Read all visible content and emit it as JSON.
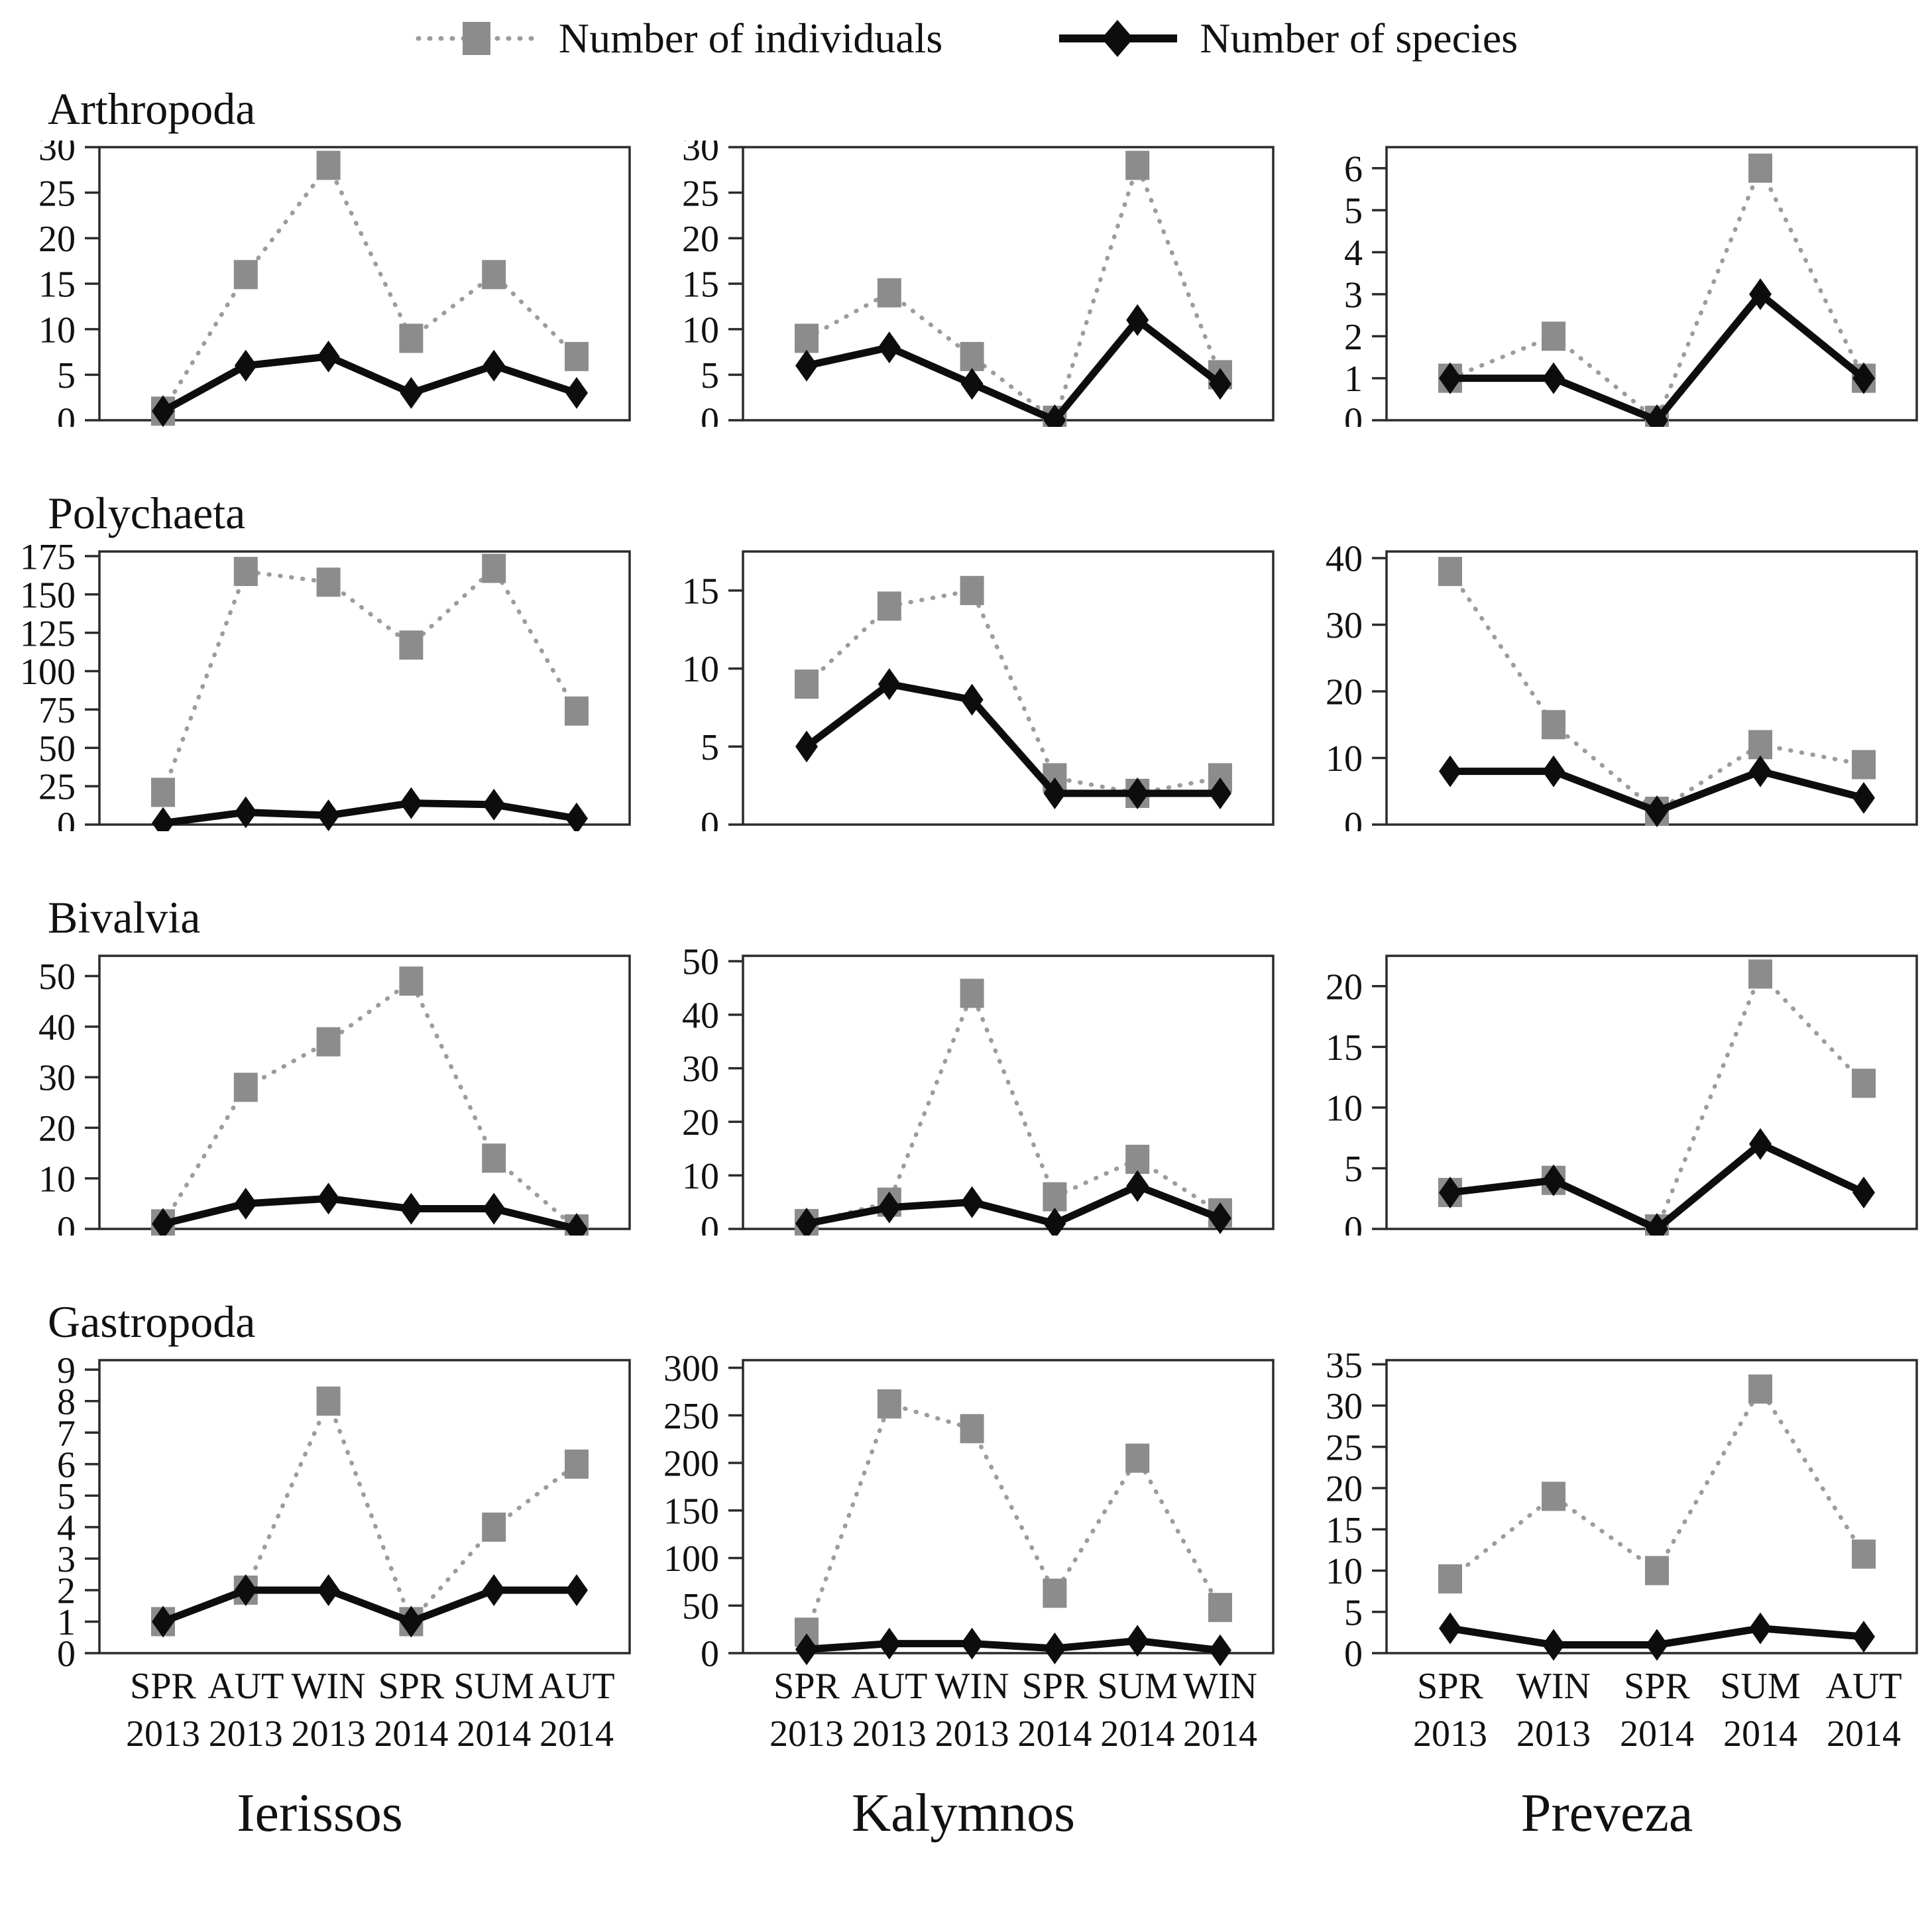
{
  "legend": {
    "individuals": "Number of individuals",
    "species": "Number of species"
  },
  "colors": {
    "frame": "#2b2b2b",
    "individuals_line": "#9c9c9c",
    "individuals_marker": "#8c8c8c",
    "species_line": "#0d0d0d",
    "species_marker": "#0d0d0d",
    "text": "#111111"
  },
  "row_titles": [
    "Arthropoda",
    "Polychaeta",
    "Bivalvia",
    "Gastropoda"
  ],
  "locations": [
    "Ierissos",
    "Kalymnos",
    "Preveza"
  ],
  "chart_data": [
    {
      "type": "line",
      "taxon": "Arthropoda",
      "location": "Ierissos",
      "categories": [
        "SPR 2013",
        "AUT 2013",
        "WIN 2013",
        "SPR 2014",
        "SUM 2014",
        "AUT 2014"
      ],
      "yticks": [
        0,
        5,
        10,
        15,
        20,
        25,
        30
      ],
      "ylim": [
        0,
        30
      ],
      "show_x_labels": false,
      "series": [
        {
          "name": "Number of individuals",
          "values": [
            1,
            16,
            28,
            9,
            16,
            7
          ]
        },
        {
          "name": "Number of species",
          "values": [
            1,
            6,
            7,
            3,
            6,
            3
          ]
        }
      ]
    },
    {
      "type": "line",
      "taxon": "Arthropoda",
      "location": "Kalymnos",
      "categories": [
        "SPR 2013",
        "AUT 2013",
        "WIN 2013",
        "SPR 2014",
        "SUM 2014",
        "WIN 2014"
      ],
      "yticks": [
        0,
        5,
        10,
        15,
        20,
        25,
        30
      ],
      "ylim": [
        0,
        30
      ],
      "show_x_labels": false,
      "series": [
        {
          "name": "Number of individuals",
          "values": [
            9,
            14,
            7,
            0,
            28,
            5
          ]
        },
        {
          "name": "Number of species",
          "values": [
            6,
            8,
            4,
            0,
            11,
            4
          ]
        }
      ]
    },
    {
      "type": "line",
      "taxon": "Arthropoda",
      "location": "Preveza",
      "categories": [
        "SPR 2013",
        "WIN 2013",
        "SPR 2014",
        "SUM 2014",
        "AUT 2014"
      ],
      "yticks": [
        0,
        1,
        2,
        3,
        4,
        5,
        6
      ],
      "ylim": [
        0,
        6.5
      ],
      "show_x_labels": false,
      "series": [
        {
          "name": "Number of individuals",
          "values": [
            1,
            2,
            0,
            6,
            1
          ]
        },
        {
          "name": "Number of species",
          "values": [
            1,
            1,
            0,
            3,
            1
          ]
        }
      ]
    },
    {
      "type": "line",
      "taxon": "Polychaeta",
      "location": "Ierissos",
      "categories": [
        "SPR 2013",
        "AUT 2013",
        "WIN 2013",
        "SPR 2014",
        "SUM 2014",
        "AUT 2014"
      ],
      "yticks": [
        0,
        25,
        50,
        75,
        100,
        125,
        150,
        175
      ],
      "ylim": [
        0,
        178
      ],
      "show_x_labels": false,
      "series": [
        {
          "name": "Number of individuals",
          "values": [
            21,
            165,
            158,
            117,
            167,
            74
          ]
        },
        {
          "name": "Number of species",
          "values": [
            1,
            8,
            6,
            14,
            13,
            4
          ]
        }
      ]
    },
    {
      "type": "line",
      "taxon": "Polychaeta",
      "location": "Kalymnos",
      "categories": [
        "SPR 2013",
        "AUT 2013",
        "WIN 2013",
        "SPR 2014",
        "SUM 2014",
        "WIN 2014"
      ],
      "yticks": [
        0,
        5,
        10,
        15
      ],
      "ylim": [
        0,
        17.5
      ],
      "show_x_labels": false,
      "series": [
        {
          "name": "Number of individuals",
          "values": [
            9,
            14,
            15,
            3,
            2,
            3
          ]
        },
        {
          "name": "Number of species",
          "values": [
            5,
            9,
            8,
            2,
            2,
            2
          ]
        }
      ]
    },
    {
      "type": "line",
      "taxon": "Polychaeta",
      "location": "Preveza",
      "categories": [
        "SPR 2013",
        "WIN 2013",
        "SPR 2014",
        "SUM 2014",
        "AUT 2014"
      ],
      "yticks": [
        0,
        10,
        20,
        30,
        40
      ],
      "ylim": [
        0,
        41
      ],
      "show_x_labels": false,
      "series": [
        {
          "name": "Number of individuals",
          "values": [
            38,
            15,
            2,
            12,
            9
          ]
        },
        {
          "name": "Number of species",
          "values": [
            8,
            8,
            2,
            8,
            4
          ]
        }
      ]
    },
    {
      "type": "line",
      "taxon": "Bivalvia",
      "location": "Ierissos",
      "categories": [
        "SPR 2013",
        "AUT 2013",
        "WIN 2013",
        "SPR 2014",
        "SUM 2014",
        "AUT 2014"
      ],
      "yticks": [
        0,
        10,
        20,
        30,
        40,
        50
      ],
      "ylim": [
        0,
        54
      ],
      "show_x_labels": false,
      "series": [
        {
          "name": "Number of individuals",
          "values": [
            1,
            28,
            37,
            49,
            14,
            0
          ]
        },
        {
          "name": "Number of species",
          "values": [
            1,
            5,
            6,
            4,
            4,
            0
          ]
        }
      ]
    },
    {
      "type": "line",
      "taxon": "Bivalvia",
      "location": "Kalymnos",
      "categories": [
        "SPR 2013",
        "AUT 2013",
        "WIN 2013",
        "SPR 2014",
        "SUM 2014",
        "WIN 2014"
      ],
      "yticks": [
        0,
        10,
        20,
        30,
        40,
        50
      ],
      "ylim": [
        0,
        51
      ],
      "show_x_labels": false,
      "series": [
        {
          "name": "Number of individuals",
          "values": [
            1,
            5,
            44,
            6,
            13,
            3
          ]
        },
        {
          "name": "Number of species",
          "values": [
            1,
            4,
            5,
            1,
            8,
            2
          ]
        }
      ]
    },
    {
      "type": "line",
      "taxon": "Bivalvia",
      "location": "Preveza",
      "categories": [
        "SPR 2013",
        "WIN 2013",
        "SPR 2014",
        "SUM 2014",
        "AUT 2014"
      ],
      "yticks": [
        0,
        5,
        10,
        15,
        20
      ],
      "ylim": [
        0,
        22.5
      ],
      "show_x_labels": false,
      "series": [
        {
          "name": "Number of individuals",
          "values": [
            3,
            4,
            0,
            21,
            12
          ]
        },
        {
          "name": "Number of species",
          "values": [
            3,
            4,
            0,
            7,
            3
          ]
        }
      ]
    },
    {
      "type": "line",
      "taxon": "Gastropoda",
      "location": "Ierissos",
      "categories": [
        "SPR 2013",
        "AUT 2013",
        "WIN 2013",
        "SPR 2014",
        "SUM 2014",
        "AUT 2014"
      ],
      "yticks": [
        0,
        1,
        2,
        3,
        4,
        5,
        6,
        7,
        8,
        9
      ],
      "ylim": [
        0,
        9.3
      ],
      "show_x_labels": true,
      "series": [
        {
          "name": "Number of individuals",
          "values": [
            1,
            2,
            8,
            1,
            4,
            6
          ]
        },
        {
          "name": "Number of species",
          "values": [
            1,
            2,
            2,
            1,
            2,
            2
          ]
        }
      ]
    },
    {
      "type": "line",
      "taxon": "Gastropoda",
      "location": "Kalymnos",
      "categories": [
        "SPR 2013",
        "AUT 2013",
        "WIN 2013",
        "SPR 2014",
        "SUM 2014",
        "WIN 2014"
      ],
      "yticks": [
        0,
        50,
        100,
        150,
        200,
        250,
        300
      ],
      "ylim": [
        0,
        308
      ],
      "show_x_labels": true,
      "series": [
        {
          "name": "Number of individuals",
          "values": [
            22,
            262,
            236,
            63,
            205,
            48
          ]
        },
        {
          "name": "Number of species",
          "values": [
            4,
            10,
            10,
            5,
            13,
            3
          ]
        }
      ]
    },
    {
      "type": "line",
      "taxon": "Gastropoda",
      "location": "Preveza",
      "categories": [
        "SPR 2013",
        "WIN 2013",
        "SPR 2014",
        "SUM 2014",
        "AUT 2014"
      ],
      "yticks": [
        0,
        5,
        10,
        15,
        20,
        25,
        30,
        35
      ],
      "ylim": [
        0,
        35.5
      ],
      "show_x_labels": true,
      "series": [
        {
          "name": "Number of individuals",
          "values": [
            9,
            19,
            10,
            32,
            12
          ]
        },
        {
          "name": "Number of species",
          "values": [
            3,
            1,
            1,
            3,
            2
          ]
        }
      ]
    }
  ]
}
